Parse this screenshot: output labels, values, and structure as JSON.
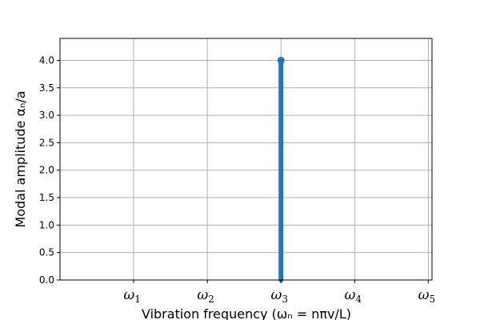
{
  "chart_data": {
    "type": "stem",
    "xlabel": "Vibration frequency (ωₙ = nπv/L)",
    "ylabel": "Modal amplitude αₙ/a",
    "x_ticks": [
      {
        "base": "ω",
        "sub": "1",
        "value": 1
      },
      {
        "base": "ω",
        "sub": "2",
        "value": 2
      },
      {
        "base": "ω",
        "sub": "3",
        "value": 3
      },
      {
        "base": "ω",
        "sub": "4",
        "value": 4
      },
      {
        "base": "ω",
        "sub": "5",
        "value": 5
      }
    ],
    "y_ticks": [
      "0.0",
      "0.5",
      "1.0",
      "1.5",
      "2.0",
      "2.5",
      "3.0",
      "3.5",
      "4.0"
    ],
    "xlim": [
      0,
      5.05
    ],
    "ylim": [
      0,
      4.4
    ],
    "grid": true,
    "series": [
      {
        "x": [
          3
        ],
        "y": [
          4.0
        ],
        "color": "#1f77b4"
      }
    ]
  }
}
